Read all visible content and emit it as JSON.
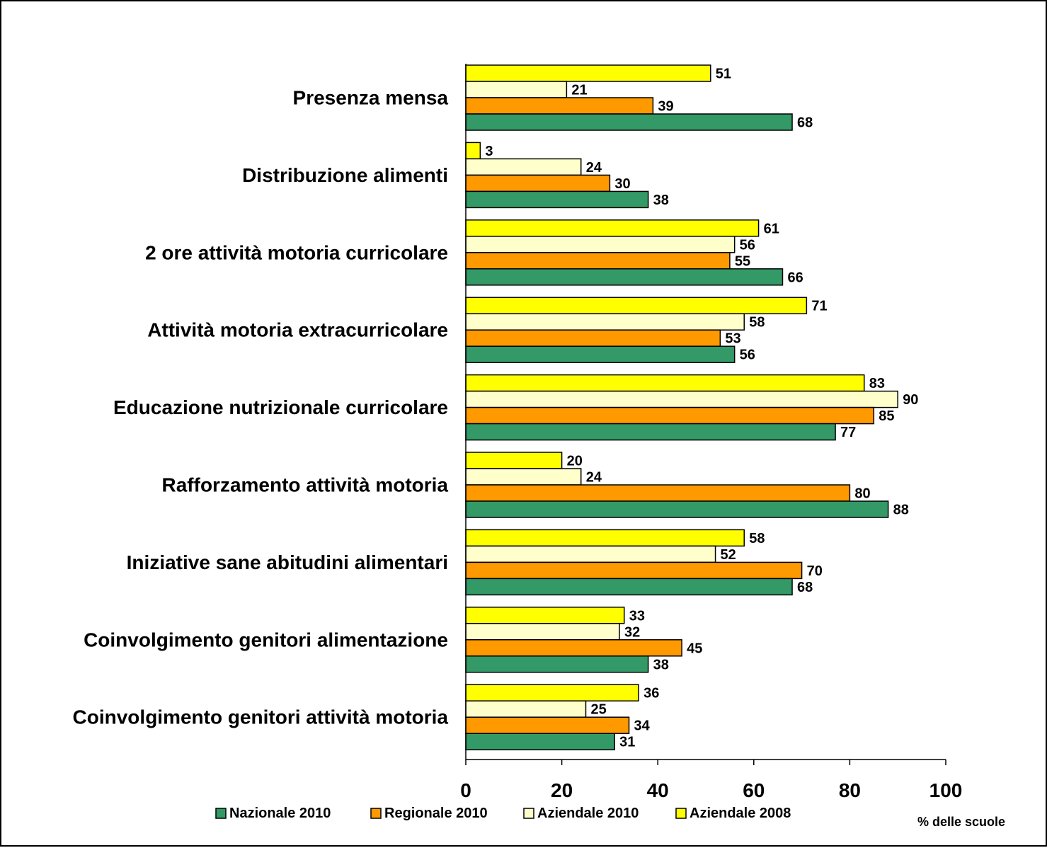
{
  "chart_data": {
    "type": "bar",
    "orientation": "horizontal",
    "title": "",
    "xlabel": "% delle scuole",
    "ylabel": "",
    "xlim": [
      0,
      100
    ],
    "xticks": [
      "0",
      "20",
      "40",
      "60",
      "80",
      "100"
    ],
    "grid": false,
    "legend_position": "bottom",
    "categories": [
      "Presenza mensa",
      "Distribuzione alimenti",
      "2 ore attività motoria curricolare",
      "Attività motoria extracurricolare",
      "Educazione nutrizionale curricolare",
      "Rafforzamento attività motoria",
      "Iniziative sane abitudini alimentari",
      "Coinvolgimento genitori alimentazione",
      "Coinvolgimento genitori attività motoria"
    ],
    "series": [
      {
        "name": "Aziendale 2008",
        "color": "#ffff00",
        "values": [
          51,
          3,
          61,
          71,
          83,
          20,
          58,
          33,
          36
        ],
        "labels": [
          "51",
          "3",
          "61",
          "71",
          "83",
          "20",
          "58",
          "33",
          "36"
        ]
      },
      {
        "name": "Aziendale 2010",
        "color": "#ffffcc",
        "values": [
          21,
          24,
          56,
          58,
          90,
          24,
          52,
          32,
          25
        ],
        "labels": [
          "21",
          "24",
          "56",
          "58",
          "90",
          "24",
          "52",
          "32",
          "25"
        ]
      },
      {
        "name": "Regionale 2010",
        "color": "#ff9900",
        "values": [
          39,
          30,
          55,
          53,
          85,
          80,
          70,
          45,
          34
        ],
        "labels": [
          "39",
          "30",
          "55",
          "53",
          "85",
          "80",
          "70",
          "45",
          "34"
        ]
      },
      {
        "name": "Nazionale 2010",
        "color": "#339966",
        "values": [
          68,
          38,
          66,
          56,
          77,
          88,
          68,
          38,
          31
        ],
        "labels": [
          "68",
          "38",
          "66",
          "56",
          "77",
          "88",
          "68",
          "38",
          "31"
        ]
      }
    ],
    "legend_order": [
      "Nazionale 2010",
      "Regionale 2010",
      "Aziendale 2010",
      "Aziendale 2008"
    ]
  }
}
